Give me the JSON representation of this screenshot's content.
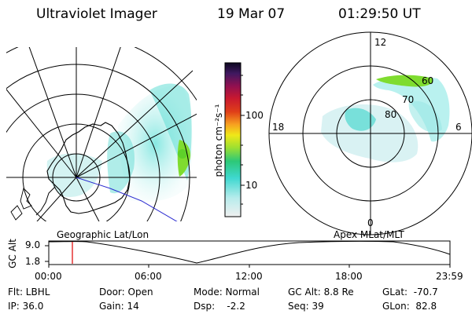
{
  "header": {
    "instrument": "Ultraviolet Imager",
    "date": "19 Mar 07",
    "time": "01:29:50 UT"
  },
  "left_map": {
    "label": "Geographic Lat/Lon"
  },
  "right_map": {
    "label": "Apex MLat/MLT",
    "mlt_labels": [
      "12",
      "18",
      "6",
      "0"
    ],
    "lat_labels": [
      "60",
      "70",
      "80"
    ]
  },
  "colorbar": {
    "unit_label": "photon cm⁻²s⁻¹",
    "scale": "log",
    "tick_labels": [
      "100",
      "10"
    ]
  },
  "timeline": {
    "axis_label": "GC Alt",
    "y_ticks": [
      "9.0",
      "1.8"
    ],
    "x_ticks": [
      "00:00",
      "06:00",
      "12:00",
      "18:00",
      "23:59"
    ],
    "cursor_color": "#e00000"
  },
  "status": {
    "flt": "Flt: LBHL",
    "ip": "IP: 36.0",
    "door": "Door: Open",
    "gain": "Gain: 14",
    "mode": "Mode: Normal",
    "dsp": "Dsp:    -2.2",
    "gc_alt": "GC Alt: 8.8 Re",
    "seq": "Seq: 39",
    "glat": "GLat:  -70.7",
    "glon": "GLon:  82.8"
  },
  "colors": {
    "aurora_low": "#9fe8e6",
    "aurora_mid": "#35d9cc",
    "aurora_high": "#7fdc2f",
    "terminator_line": "#2a2ad0"
  }
}
